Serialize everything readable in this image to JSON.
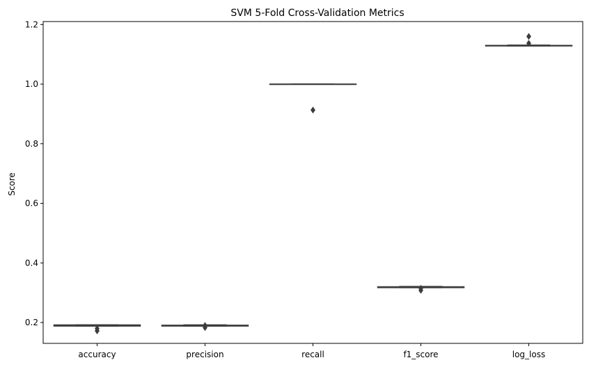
{
  "chart_data": {
    "type": "boxplot",
    "title": "SVM 5-Fold Cross-Validation Metrics",
    "xlabel": "",
    "ylabel": "Score",
    "ylim": [
      0.13,
      1.21
    ],
    "yticks": [
      0.2,
      0.4,
      0.6,
      0.8,
      1.0,
      1.2
    ],
    "ytick_labels": [
      "0.2",
      "0.4",
      "0.6",
      "0.8",
      "1.0",
      "1.2"
    ],
    "categories": [
      "accuracy",
      "precision",
      "recall",
      "f1_score",
      "log_loss"
    ],
    "box_color": "#3d3d3d",
    "boxes": [
      {
        "category": "accuracy",
        "whislo": 0.188,
        "q1": 0.188,
        "med": 0.19,
        "q3": 0.192,
        "whishi": 0.192,
        "fliers": [
          0.172,
          0.18
        ]
      },
      {
        "category": "precision",
        "whislo": 0.188,
        "q1": 0.188,
        "med": 0.19,
        "q3": 0.191,
        "whishi": 0.192,
        "fliers": [
          0.183,
          0.19
        ]
      },
      {
        "category": "recall",
        "whislo": 1.0,
        "q1": 1.0,
        "med": 1.0,
        "q3": 1.0,
        "whishi": 1.0,
        "fliers": [
          0.913
        ]
      },
      {
        "category": "f1_score",
        "whislo": 0.317,
        "q1": 0.317,
        "med": 0.319,
        "q3": 0.32,
        "whishi": 0.321,
        "fliers": [
          0.308,
          0.315
        ]
      },
      {
        "category": "log_loss",
        "whislo": 1.128,
        "q1": 1.128,
        "med": 1.129,
        "q3": 1.13,
        "whishi": 1.131,
        "fliers": [
          1.137,
          1.16
        ]
      }
    ],
    "grid": false,
    "legend": "none"
  }
}
